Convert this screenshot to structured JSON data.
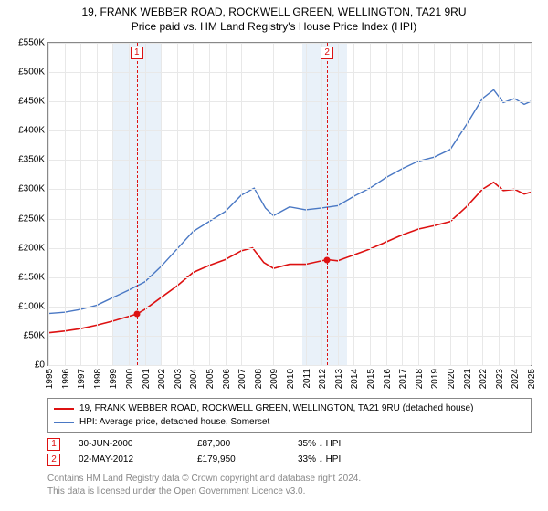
{
  "title1": "19, FRANK WEBBER ROAD, ROCKWELL GREEN, WELLINGTON, TA21 9RU",
  "title2": "Price paid vs. HM Land Registry's House Price Index (HPI)",
  "chart": {
    "type": "line",
    "x_start": 1995,
    "x_end": 2025,
    "y_min": 0,
    "y_max": 550000,
    "y_ticks": [
      0,
      50000,
      100000,
      150000,
      200000,
      250000,
      300000,
      350000,
      400000,
      450000,
      500000,
      550000
    ],
    "y_tick_labels": [
      "£0",
      "£50K",
      "£100K",
      "£150K",
      "£200K",
      "£250K",
      "£300K",
      "£350K",
      "£400K",
      "£450K",
      "£500K",
      "£550K"
    ],
    "x_ticks": [
      1995,
      1996,
      1997,
      1998,
      1999,
      2000,
      2001,
      2002,
      2003,
      2004,
      2005,
      2006,
      2007,
      2008,
      2009,
      2010,
      2011,
      2012,
      2013,
      2014,
      2015,
      2016,
      2017,
      2018,
      2019,
      2020,
      2021,
      2022,
      2023,
      2024,
      2025
    ],
    "grid_color": "#e8e8e8",
    "border_color": "#888888",
    "background_color": "#ffffff",
    "shade_bands": [
      {
        "x_from": 1999.0,
        "x_to": 2002.0,
        "color": "#dbe7f5"
      },
      {
        "x_from": 2010.8,
        "x_to": 2013.6,
        "color": "#dbe7f5"
      }
    ],
    "event_lines": [
      {
        "x": 2000.5,
        "color": "#dd1111",
        "label": "1"
      },
      {
        "x": 2012.34,
        "color": "#dd1111",
        "label": "2"
      }
    ],
    "series": [
      {
        "name": "price_paid",
        "label": "19, FRANK WEBBER ROAD, ROCKWELL GREEN, WELLINGTON, TA21 9RU (detached house)",
        "color": "#dd1111",
        "line_width": 1.6,
        "data": [
          [
            1995,
            55000
          ],
          [
            1996,
            58000
          ],
          [
            1997,
            62000
          ],
          [
            1998,
            68000
          ],
          [
            1999,
            75000
          ],
          [
            2000.5,
            87000
          ],
          [
            2001,
            95000
          ],
          [
            2002,
            115000
          ],
          [
            2003,
            135000
          ],
          [
            2004,
            158000
          ],
          [
            2005,
            170000
          ],
          [
            2006,
            180000
          ],
          [
            2007,
            195000
          ],
          [
            2007.7,
            200000
          ],
          [
            2008.4,
            175000
          ],
          [
            2009,
            165000
          ],
          [
            2010,
            172000
          ],
          [
            2011,
            172000
          ],
          [
            2012.34,
            179950
          ],
          [
            2013,
            178000
          ],
          [
            2014,
            188000
          ],
          [
            2015,
            198000
          ],
          [
            2016,
            210000
          ],
          [
            2017,
            222000
          ],
          [
            2018,
            232000
          ],
          [
            2019,
            238000
          ],
          [
            2020,
            245000
          ],
          [
            2021,
            270000
          ],
          [
            2022,
            300000
          ],
          [
            2022.7,
            312000
          ],
          [
            2023.3,
            298000
          ],
          [
            2024,
            300000
          ],
          [
            2024.6,
            292000
          ],
          [
            2025,
            295000
          ]
        ],
        "markers": [
          {
            "x": 2000.5,
            "y": 87000
          },
          {
            "x": 2012.34,
            "y": 179950
          }
        ]
      },
      {
        "name": "hpi",
        "label": "HPI: Average price, detached house, Somerset",
        "color": "#4a78c4",
        "line_width": 1.4,
        "data": [
          [
            1995,
            88000
          ],
          [
            1996,
            90000
          ],
          [
            1997,
            95000
          ],
          [
            1998,
            102000
          ],
          [
            1999,
            115000
          ],
          [
            2000,
            128000
          ],
          [
            2001,
            142000
          ],
          [
            2002,
            168000
          ],
          [
            2003,
            198000
          ],
          [
            2004,
            228000
          ],
          [
            2005,
            245000
          ],
          [
            2006,
            262000
          ],
          [
            2007,
            290000
          ],
          [
            2007.8,
            302000
          ],
          [
            2008.5,
            268000
          ],
          [
            2009,
            255000
          ],
          [
            2010,
            270000
          ],
          [
            2011,
            265000
          ],
          [
            2012,
            268000
          ],
          [
            2013,
            272000
          ],
          [
            2014,
            288000
          ],
          [
            2015,
            302000
          ],
          [
            2016,
            320000
          ],
          [
            2017,
            335000
          ],
          [
            2018,
            348000
          ],
          [
            2019,
            355000
          ],
          [
            2020,
            368000
          ],
          [
            2021,
            410000
          ],
          [
            2022,
            455000
          ],
          [
            2022.7,
            470000
          ],
          [
            2023.3,
            448000
          ],
          [
            2024,
            455000
          ],
          [
            2024.6,
            445000
          ],
          [
            2025,
            450000
          ]
        ]
      }
    ]
  },
  "legend": {
    "rows": [
      {
        "color": "#dd1111",
        "label": "19, FRANK WEBBER ROAD, ROCKWELL GREEN, WELLINGTON, TA21 9RU (detached house)"
      },
      {
        "color": "#4a78c4",
        "label": "HPI: Average price, detached house, Somerset"
      }
    ]
  },
  "events": [
    {
      "idx": "1",
      "date": "30-JUN-2000",
      "price": "£87,000",
      "delta": "35% ↓ HPI"
    },
    {
      "idx": "2",
      "date": "02-MAY-2012",
      "price": "£179,950",
      "delta": "33% ↓ HPI"
    }
  ],
  "footer_line1": "Contains HM Land Registry data © Crown copyright and database right 2024.",
  "footer_line2": "This data is licensed under the Open Government Licence v3.0."
}
